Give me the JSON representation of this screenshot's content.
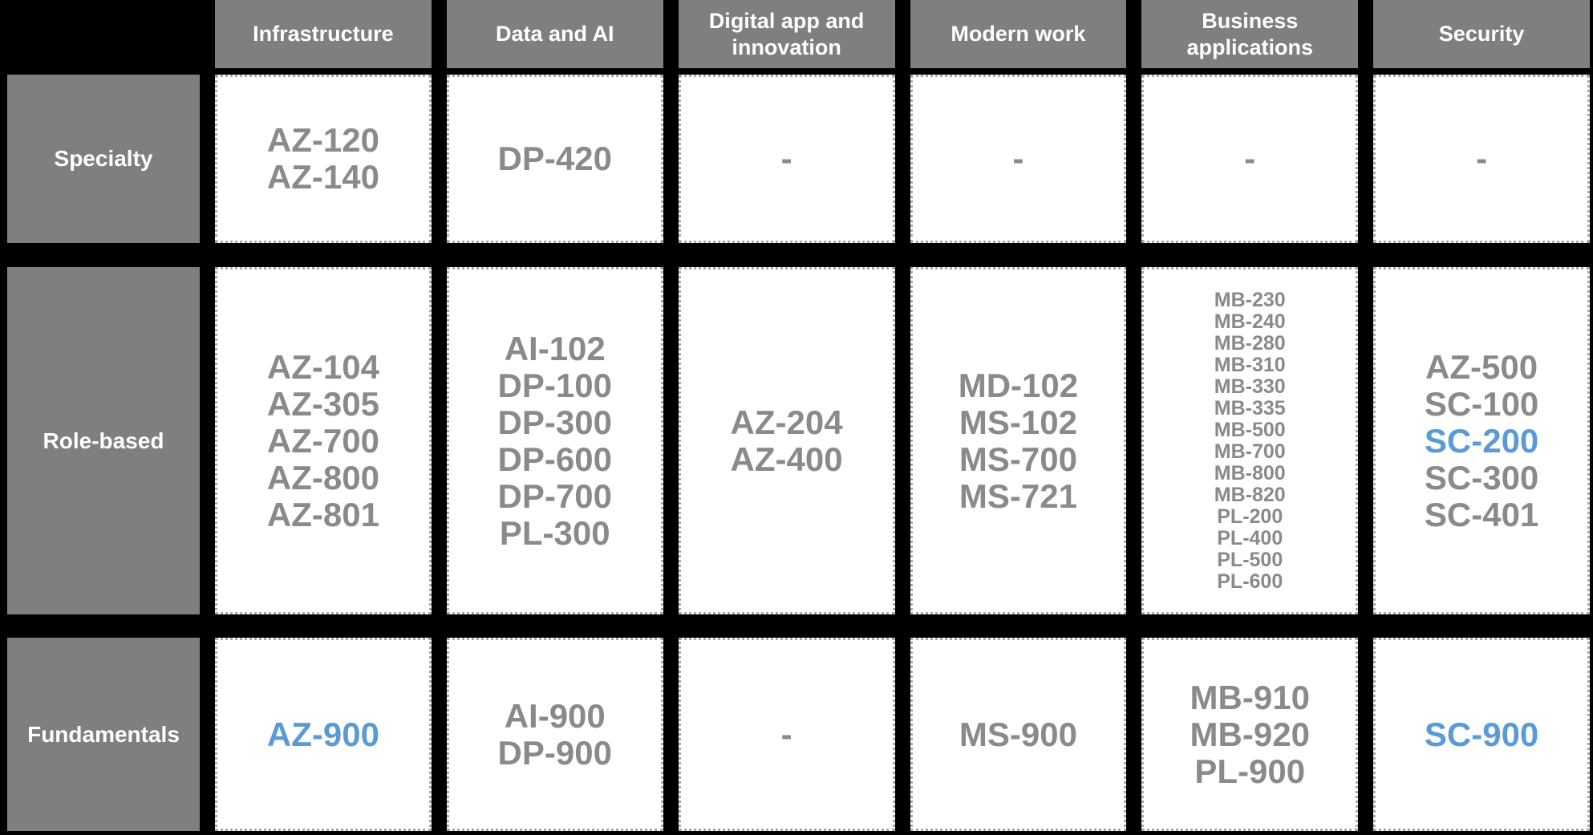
{
  "colors": {
    "background": "#000000",
    "header_fill": "#7f7f7f",
    "cell_fill": "#ffffff",
    "code_gray": "#8a8a8a",
    "accent_blue": "#5b9bd5",
    "dotted_border": "#a9a9a9"
  },
  "highlighted_codes": [
    "AZ-900",
    "SC-200",
    "SC-900"
  ],
  "columns": [
    {
      "label": "Infrastructure"
    },
    {
      "label": "Data and AI"
    },
    {
      "label": "Digital app and innovation"
    },
    {
      "label": "Modern work"
    },
    {
      "label": "Business applications"
    },
    {
      "label": "Security"
    }
  ],
  "rows": [
    {
      "label": "Specialty",
      "cells": [
        {
          "codes": [
            "AZ-120",
            "AZ-140"
          ]
        },
        {
          "codes": [
            "DP-420"
          ]
        },
        {
          "codes": [
            "-"
          ]
        },
        {
          "codes": [
            "-"
          ]
        },
        {
          "codes": [
            "-"
          ]
        },
        {
          "codes": [
            "-"
          ]
        }
      ]
    },
    {
      "label": "Role-based",
      "cells": [
        {
          "codes": [
            "AZ-104",
            "AZ-305",
            "AZ-700",
            "AZ-800",
            "AZ-801"
          ]
        },
        {
          "codes": [
            "AI-102",
            "DP-100",
            "DP-300",
            "DP-600",
            "DP-700",
            "PL-300"
          ]
        },
        {
          "codes": [
            "AZ-204",
            "AZ-400"
          ]
        },
        {
          "codes": [
            "MD-102",
            "MS-102",
            "MS-700",
            "MS-721"
          ]
        },
        {
          "codes": [
            "MB-230",
            "MB-240",
            "MB-280",
            "MB-310",
            "MB-330",
            "MB-335",
            "MB-500",
            "MB-700",
            "MB-800",
            "MB-820",
            "PL-200",
            "PL-400",
            "PL-500",
            "PL-600"
          ]
        },
        {
          "codes": [
            "AZ-500",
            "SC-100",
            "SC-200",
            "SC-300",
            "SC-401"
          ]
        }
      ]
    },
    {
      "label": "Fundamentals",
      "cells": [
        {
          "codes": [
            "AZ-900"
          ]
        },
        {
          "codes": [
            "AI-900",
            "DP-900"
          ]
        },
        {
          "codes": [
            "-"
          ]
        },
        {
          "codes": [
            "MS-900"
          ]
        },
        {
          "codes": [
            "MB-910",
            "MB-920",
            "PL-900"
          ]
        },
        {
          "codes": [
            "SC-900"
          ]
        }
      ]
    }
  ]
}
